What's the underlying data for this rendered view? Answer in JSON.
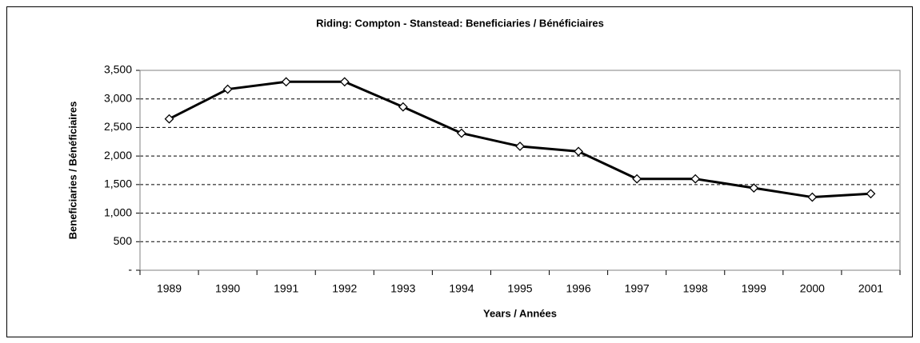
{
  "chart_data": {
    "type": "line",
    "title": "Riding:  Compton - Stanstead:  Beneficiaries / Bénéficiaires",
    "x_label": "Years / Années",
    "y_label": "Beneficiaries / Bénéficiaires",
    "categories": [
      "1989",
      "1990",
      "1991",
      "1992",
      "1993",
      "1994",
      "1995",
      "1996",
      "1997",
      "1998",
      "1999",
      "2000",
      "2001"
    ],
    "series": [
      {
        "name": "Beneficiaries / Bénéficiaires",
        "color": "#000000",
        "values": [
          2650,
          3170,
          3300,
          3300,
          2860,
          2400,
          2170,
          2080,
          1600,
          1600,
          1440,
          1280,
          1340
        ]
      }
    ],
    "ylim": [
      0,
      3500
    ],
    "yticks": [
      {
        "value": 0,
        "label": "-"
      },
      500,
      {
        "value": 1000,
        "label": "1,000"
      },
      {
        "value": 1500,
        "label": "1,500"
      },
      {
        "value": 2000,
        "label": "2,000"
      },
      {
        "value": 2500,
        "label": "2,500"
      },
      {
        "value": 3000,
        "label": "3,000"
      },
      {
        "value": 3500,
        "label": "3,500"
      }
    ],
    "grid": true
  }
}
